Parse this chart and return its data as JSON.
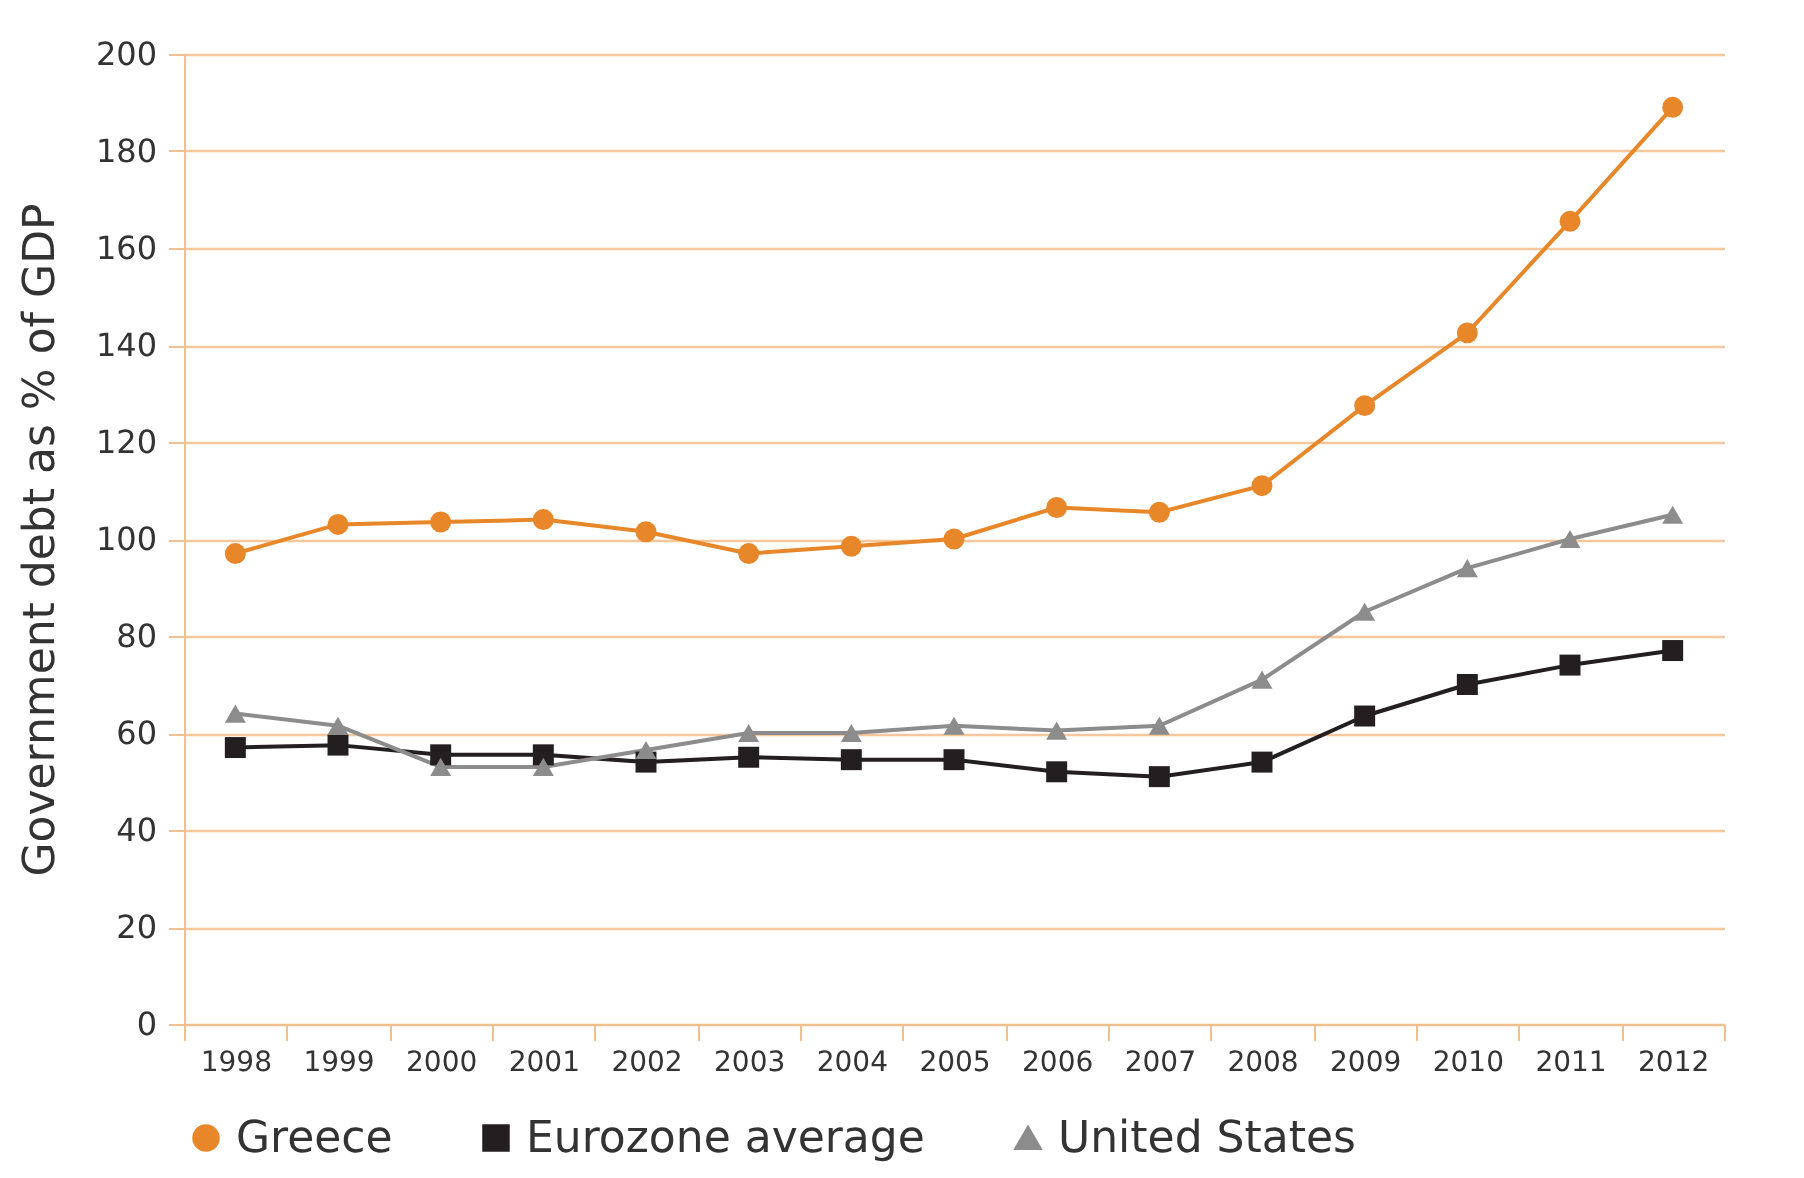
{
  "chart_data": {
    "type": "line",
    "ylabel": "Government debt as % of GDP",
    "categories": [
      "1998",
      "1999",
      "2000",
      "2001",
      "2002",
      "2003",
      "2004",
      "2005",
      "2006",
      "2007",
      "2008",
      "2009",
      "2010",
      "2011",
      "2012"
    ],
    "series": [
      {
        "name": "Greece",
        "color": "#e8872a",
        "marker": "circle",
        "values": [
          97,
          103,
          103.5,
          104,
          101.5,
          97,
          98.5,
          100,
          106.5,
          105.5,
          111,
          127.5,
          142.5,
          165.5,
          189
        ]
      },
      {
        "name": "Eurozone average",
        "color": "#231f20",
        "marker": "square",
        "values": [
          57,
          57.5,
          55.5,
          55.5,
          54,
          55,
          54.5,
          54.5,
          52,
          51,
          54,
          63.5,
          70,
          74,
          77
        ]
      },
      {
        "name": "United States",
        "color": "#8c8c8c",
        "marker": "triangle",
        "values": [
          64,
          61.5,
          53,
          53,
          56.5,
          60,
          60,
          61.5,
          60.5,
          61.5,
          71,
          85,
          94,
          100,
          105
        ]
      }
    ],
    "ylim": [
      0,
      200
    ],
    "yticks": [
      0,
      20,
      40,
      60,
      80,
      100,
      120,
      140,
      160,
      180,
      200
    ],
    "grid": "y",
    "legend": "bottom"
  }
}
